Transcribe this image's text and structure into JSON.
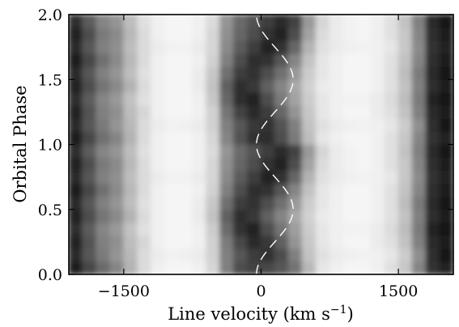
{
  "chart_data": {
    "type": "heatmap",
    "title": "",
    "xlabel": "Line velocity (km s",
    "xlabel_exp": "−1",
    "xlabel_close": ")",
    "ylabel": "Orbital Phase",
    "xlim": [
      -2100,
      2100
    ],
    "ylim": [
      0.0,
      2.0
    ],
    "xticks": [
      -1500,
      0,
      1500
    ],
    "xtick_labels": [
      "−1500",
      "0",
      "1500"
    ],
    "yticks": [
      0.0,
      0.5,
      1.0,
      1.5,
      2.0
    ],
    "ytick_labels": [
      "0.0",
      "0.5",
      "1.0",
      "1.5",
      "2.0"
    ],
    "colormap": "grayscale (dark = high emission)",
    "velocity_bins": [
      -2025,
      -1875,
      -1725,
      -1575,
      -1425,
      -1275,
      -1125,
      -975,
      -825,
      -675,
      -525,
      -375,
      -225,
      -75,
      75,
      225,
      375,
      525,
      675,
      825,
      975,
      1125,
      1275,
      1425,
      1575,
      1725,
      1875,
      2025
    ],
    "phase_bins": [
      0.05,
      0.15,
      0.25,
      0.35,
      0.45,
      0.55,
      0.65,
      0.75,
      0.85,
      0.95,
      1.05,
      1.15,
      1.25,
      1.35,
      1.45,
      1.55,
      1.65,
      1.75,
      1.85,
      1.95
    ],
    "intensity": [
      [
        0.88,
        0.72,
        0.58,
        0.48,
        0.3,
        0.14,
        0.06,
        0.04,
        0.04,
        0.06,
        0.16,
        0.5,
        0.7,
        0.74,
        0.72,
        0.66,
        0.55,
        0.28,
        0.1,
        0.06,
        0.04,
        0.04,
        0.06,
        0.12,
        0.22,
        0.48,
        0.8,
        0.86
      ],
      [
        0.84,
        0.66,
        0.52,
        0.42,
        0.28,
        0.14,
        0.08,
        0.05,
        0.06,
        0.08,
        0.18,
        0.5,
        0.66,
        0.76,
        0.8,
        0.7,
        0.5,
        0.24,
        0.12,
        0.08,
        0.06,
        0.05,
        0.06,
        0.1,
        0.2,
        0.44,
        0.82,
        0.9
      ],
      [
        0.86,
        0.68,
        0.5,
        0.44,
        0.26,
        0.16,
        0.06,
        0.04,
        0.04,
        0.06,
        0.18,
        0.52,
        0.72,
        0.84,
        0.78,
        0.62,
        0.42,
        0.22,
        0.1,
        0.06,
        0.04,
        0.04,
        0.08,
        0.12,
        0.24,
        0.5,
        0.84,
        0.88
      ],
      [
        0.82,
        0.64,
        0.48,
        0.4,
        0.24,
        0.12,
        0.06,
        0.04,
        0.04,
        0.06,
        0.2,
        0.58,
        0.8,
        0.86,
        0.7,
        0.54,
        0.38,
        0.2,
        0.1,
        0.06,
        0.05,
        0.05,
        0.08,
        0.14,
        0.26,
        0.52,
        0.86,
        0.9
      ],
      [
        0.86,
        0.7,
        0.54,
        0.46,
        0.3,
        0.14,
        0.06,
        0.04,
        0.04,
        0.08,
        0.24,
        0.62,
        0.82,
        0.78,
        0.62,
        0.48,
        0.34,
        0.18,
        0.08,
        0.06,
        0.04,
        0.04,
        0.06,
        0.12,
        0.24,
        0.5,
        0.82,
        0.88
      ],
      [
        0.84,
        0.66,
        0.5,
        0.42,
        0.26,
        0.12,
        0.06,
        0.04,
        0.04,
        0.08,
        0.22,
        0.56,
        0.76,
        0.8,
        0.7,
        0.56,
        0.4,
        0.2,
        0.1,
        0.06,
        0.04,
        0.04,
        0.06,
        0.12,
        0.26,
        0.52,
        0.84,
        0.9
      ],
      [
        0.88,
        0.72,
        0.56,
        0.46,
        0.28,
        0.14,
        0.06,
        0.04,
        0.04,
        0.06,
        0.18,
        0.5,
        0.7,
        0.82,
        0.8,
        0.66,
        0.48,
        0.24,
        0.1,
        0.06,
        0.04,
        0.04,
        0.06,
        0.12,
        0.24,
        0.48,
        0.82,
        0.88
      ],
      [
        0.84,
        0.66,
        0.5,
        0.44,
        0.26,
        0.14,
        0.08,
        0.05,
        0.05,
        0.08,
        0.16,
        0.46,
        0.64,
        0.76,
        0.86,
        0.8,
        0.6,
        0.3,
        0.12,
        0.08,
        0.06,
        0.05,
        0.06,
        0.1,
        0.22,
        0.46,
        0.8,
        0.86
      ],
      [
        0.86,
        0.7,
        0.52,
        0.46,
        0.28,
        0.14,
        0.06,
        0.04,
        0.04,
        0.06,
        0.16,
        0.44,
        0.6,
        0.7,
        0.8,
        0.86,
        0.7,
        0.36,
        0.14,
        0.08,
        0.05,
        0.04,
        0.06,
        0.12,
        0.22,
        0.48,
        0.82,
        0.88
      ],
      [
        0.82,
        0.64,
        0.48,
        0.42,
        0.26,
        0.12,
        0.06,
        0.04,
        0.04,
        0.06,
        0.14,
        0.42,
        0.58,
        0.68,
        0.76,
        0.84,
        0.74,
        0.4,
        0.16,
        0.08,
        0.05,
        0.04,
        0.06,
        0.12,
        0.24,
        0.5,
        0.84,
        0.9
      ],
      [
        0.88,
        0.72,
        0.56,
        0.48,
        0.3,
        0.14,
        0.06,
        0.04,
        0.04,
        0.06,
        0.16,
        0.48,
        0.68,
        0.8,
        0.82,
        0.7,
        0.52,
        0.26,
        0.1,
        0.06,
        0.04,
        0.04,
        0.06,
        0.12,
        0.22,
        0.48,
        0.8,
        0.86
      ],
      [
        0.84,
        0.66,
        0.52,
        0.42,
        0.28,
        0.14,
        0.08,
        0.05,
        0.06,
        0.08,
        0.18,
        0.5,
        0.66,
        0.78,
        0.8,
        0.68,
        0.5,
        0.24,
        0.12,
        0.08,
        0.06,
        0.05,
        0.06,
        0.1,
        0.2,
        0.44,
        0.82,
        0.9
      ],
      [
        0.86,
        0.68,
        0.5,
        0.44,
        0.26,
        0.16,
        0.06,
        0.04,
        0.04,
        0.06,
        0.18,
        0.54,
        0.74,
        0.84,
        0.76,
        0.6,
        0.42,
        0.22,
        0.1,
        0.06,
        0.04,
        0.04,
        0.08,
        0.12,
        0.24,
        0.5,
        0.84,
        0.88
      ],
      [
        0.82,
        0.64,
        0.48,
        0.4,
        0.24,
        0.12,
        0.06,
        0.04,
        0.04,
        0.06,
        0.22,
        0.6,
        0.82,
        0.86,
        0.7,
        0.52,
        0.36,
        0.2,
        0.1,
        0.06,
        0.05,
        0.05,
        0.08,
        0.14,
        0.26,
        0.52,
        0.86,
        0.9
      ],
      [
        0.86,
        0.7,
        0.54,
        0.46,
        0.3,
        0.14,
        0.06,
        0.04,
        0.04,
        0.08,
        0.24,
        0.62,
        0.82,
        0.78,
        0.62,
        0.48,
        0.34,
        0.18,
        0.08,
        0.06,
        0.04,
        0.04,
        0.06,
        0.12,
        0.24,
        0.5,
        0.82,
        0.88
      ],
      [
        0.84,
        0.66,
        0.5,
        0.42,
        0.26,
        0.12,
        0.06,
        0.04,
        0.04,
        0.08,
        0.22,
        0.56,
        0.76,
        0.8,
        0.7,
        0.56,
        0.4,
        0.2,
        0.1,
        0.06,
        0.04,
        0.04,
        0.06,
        0.12,
        0.26,
        0.52,
        0.84,
        0.9
      ],
      [
        0.88,
        0.72,
        0.56,
        0.46,
        0.28,
        0.14,
        0.06,
        0.04,
        0.04,
        0.06,
        0.18,
        0.5,
        0.7,
        0.82,
        0.8,
        0.66,
        0.48,
        0.24,
        0.1,
        0.06,
        0.04,
        0.04,
        0.06,
        0.12,
        0.24,
        0.48,
        0.82,
        0.88
      ],
      [
        0.84,
        0.66,
        0.5,
        0.44,
        0.26,
        0.14,
        0.08,
        0.05,
        0.05,
        0.08,
        0.16,
        0.46,
        0.64,
        0.76,
        0.86,
        0.8,
        0.6,
        0.3,
        0.12,
        0.08,
        0.06,
        0.05,
        0.06,
        0.1,
        0.22,
        0.46,
        0.8,
        0.86
      ],
      [
        0.86,
        0.7,
        0.52,
        0.46,
        0.28,
        0.14,
        0.06,
        0.04,
        0.04,
        0.06,
        0.16,
        0.44,
        0.6,
        0.7,
        0.8,
        0.86,
        0.7,
        0.36,
        0.14,
        0.08,
        0.05,
        0.04,
        0.06,
        0.12,
        0.22,
        0.48,
        0.82,
        0.88
      ],
      [
        0.82,
        0.64,
        0.48,
        0.42,
        0.26,
        0.12,
        0.06,
        0.04,
        0.04,
        0.06,
        0.14,
        0.42,
        0.58,
        0.68,
        0.76,
        0.84,
        0.74,
        0.4,
        0.16,
        0.08,
        0.05,
        0.04,
        0.06,
        0.12,
        0.24,
        0.5,
        0.84,
        0.9
      ]
    ],
    "overlay_curve": {
      "style": "dashed white",
      "gamma_kms": 150,
      "k_kms": 200,
      "phase_offset": 0.25,
      "phase_range": [
        0.0,
        2.0
      ]
    }
  }
}
